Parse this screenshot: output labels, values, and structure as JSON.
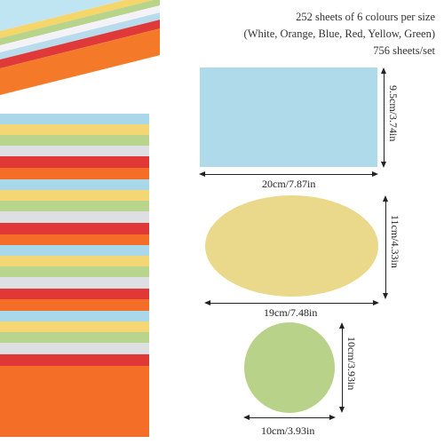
{
  "caption": {
    "line1": "252 sheets of 6 colours per size",
    "line2": "(White, Orange, Blue, Red, Yellow, Green)",
    "line3": "756 sheets/set"
  },
  "shapes": {
    "rectangle": {
      "width_label": "20cm/7.87in",
      "height_label": "9.5cm/3.74in",
      "color": "#aedaea"
    },
    "ellipse": {
      "width_label": "19cm/7.48in",
      "height_label": "11cm/4.33in",
      "color": "#ead98a"
    },
    "circle": {
      "width_label": "10cm/3.93in",
      "height_label": "10cm/3.93in",
      "color": "#b8d28a"
    }
  },
  "paper_colors": {
    "white": "#dedfe2",
    "orange": "#f46e27",
    "blue": "#a9d8ea",
    "red": "#df3836",
    "yellow": "#f5d674",
    "green": "#b9d58d"
  }
}
